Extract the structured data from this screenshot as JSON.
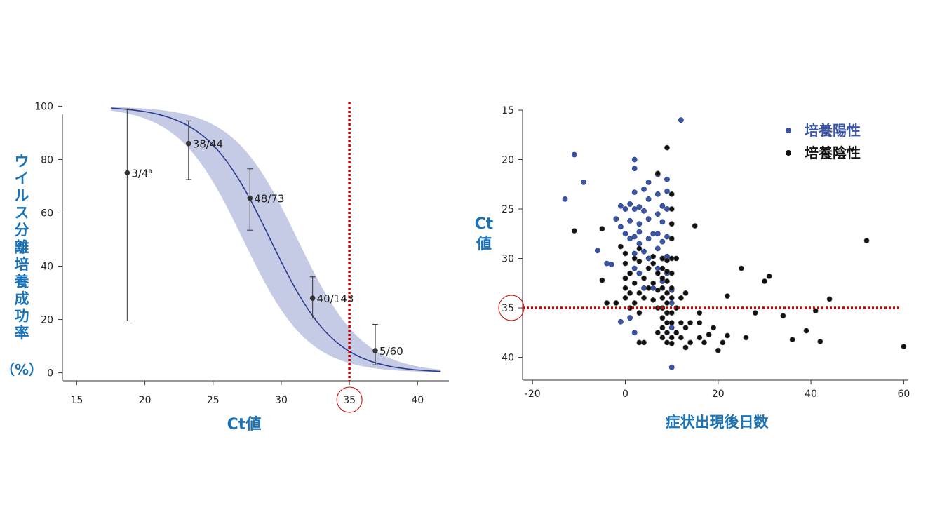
{
  "colors": {
    "axis_label": "#1a73b8",
    "curve": "#2b3d8f",
    "band": "#c5cae5",
    "threshold": "#d40000",
    "positive": "#3b55a5",
    "negative": "#111111"
  },
  "chart_data": [
    {
      "type": "line",
      "xlabel": "Ct値",
      "ylabel": "ウイルス分離培養成功率",
      "ylabel_unit": "（%）",
      "xlim": [
        14,
        42.3
      ],
      "ylim": [
        -3,
        103
      ],
      "xticks": [
        15,
        20,
        25,
        30,
        35,
        40
      ],
      "yticks": [
        0,
        20,
        40,
        60,
        80,
        100
      ],
      "threshold_x": 35,
      "threshold_label": "35",
      "logistic_curve": {
        "x_range": [
          17.5,
          41.8
        ],
        "midpoint": 29.2,
        "slope": 0.42,
        "band_halfwidth": 6
      },
      "points": [
        {
          "x": 18.7,
          "y": 75,
          "err_low": 19.5,
          "err_high": 99,
          "label": "3/4",
          "label_sup": "a"
        },
        {
          "x": 23.2,
          "y": 86,
          "err_low": 72.5,
          "err_high": 94.5,
          "label": "38/44",
          "label_sup": ""
        },
        {
          "x": 27.7,
          "y": 65.5,
          "err_low": 53.5,
          "err_high": 76.5,
          "label": "48/73",
          "label_sup": ""
        },
        {
          "x": 32.3,
          "y": 28,
          "err_low": 20.5,
          "err_high": 36,
          "label": "40/143",
          "label_sup": ""
        },
        {
          "x": 36.9,
          "y": 8.3,
          "err_low": 3,
          "err_high": 18.2,
          "label": "5/60",
          "label_sup": ""
        }
      ]
    },
    {
      "type": "scatter",
      "xlabel": "症状出現後日数",
      "ylabel": "Ct値",
      "xlim": [
        -22,
        61
      ],
      "ylim": [
        15,
        42.3
      ],
      "y_inverted": true,
      "xticks": [
        -20,
        0,
        20,
        40,
        60
      ],
      "yticks": [
        15,
        20,
        25,
        30,
        35,
        40
      ],
      "threshold_y": 35,
      "threshold_label": "35",
      "legend_position": "top-right",
      "series": [
        {
          "name": "培養陽性",
          "points": [
            [
              -11,
              19.5
            ],
            [
              -13,
              24
            ],
            [
              -9,
              22.3
            ],
            [
              -6,
              29.2
            ],
            [
              -4,
              30.5
            ],
            [
              -3,
              30.6
            ],
            [
              -2,
              26
            ],
            [
              -1,
              24.7
            ],
            [
              -1,
              26.8
            ],
            [
              0,
              27.5
            ],
            [
              0,
              25
            ],
            [
              0,
              32
            ],
            [
              1,
              28
            ],
            [
              1,
              24.5
            ],
            [
              1,
              26.2
            ],
            [
              2,
              20
            ],
            [
              2,
              20.9
            ],
            [
              2,
              23.3
            ],
            [
              2,
              25
            ],
            [
              2,
              27.8
            ],
            [
              2,
              29.5
            ],
            [
              2,
              31
            ],
            [
              3,
              24.8
            ],
            [
              3,
              27.3
            ],
            [
              3,
              28.5
            ],
            [
              3,
              31.5
            ],
            [
              3,
              26.5
            ],
            [
              4,
              25.2
            ],
            [
              4,
              29.3
            ],
            [
              4,
              33
            ],
            [
              4,
              23
            ],
            [
              5,
              22.3
            ],
            [
              5,
              24
            ],
            [
              5,
              26
            ],
            [
              5,
              28
            ],
            [
              5,
              30
            ],
            [
              6,
              33
            ],
            [
              6,
              27.5
            ],
            [
              7,
              21.5
            ],
            [
              7,
              23.5
            ],
            [
              7,
              25.5
            ],
            [
              7,
              27.5
            ],
            [
              7,
              29
            ],
            [
              7,
              31
            ],
            [
              8,
              24.7
            ],
            [
              8,
              26.3
            ],
            [
              8,
              28.3
            ],
            [
              8,
              30
            ],
            [
              8,
              32.3
            ],
            [
              9,
              29.8
            ],
            [
              9,
              22
            ],
            [
              9,
              23.2
            ],
            [
              9,
              25
            ],
            [
              9,
              27.8
            ],
            [
              9,
              31.5
            ],
            [
              9,
              35.5
            ],
            [
              10,
              33.2
            ],
            [
              10,
              34.5
            ],
            [
              10,
              37
            ],
            [
              10,
              41
            ],
            [
              12,
              16
            ],
            [
              1,
              36
            ],
            [
              -1,
              36.4
            ],
            [
              2,
              37.5
            ]
          ]
        },
        {
          "name": "培養陰性",
          "points": [
            [
              -11,
              27.2
            ],
            [
              -5,
              27
            ],
            [
              -5,
              32.2
            ],
            [
              -4,
              34.5
            ],
            [
              -2,
              34.5
            ],
            [
              -1,
              28.8
            ],
            [
              0,
              29.5
            ],
            [
              0,
              30.5
            ],
            [
              0,
              32
            ],
            [
              0,
              33
            ],
            [
              0,
              34
            ],
            [
              1,
              31.5
            ],
            [
              1,
              33.5
            ],
            [
              1,
              35
            ],
            [
              2,
              30
            ],
            [
              2,
              32.5
            ],
            [
              2,
              34.5
            ],
            [
              3,
              29
            ],
            [
              3,
              30.3
            ],
            [
              3,
              33.5
            ],
            [
              3,
              35.5
            ],
            [
              3,
              38.5
            ],
            [
              4,
              32
            ],
            [
              4,
              34
            ],
            [
              4,
              38.5
            ],
            [
              5,
              31
            ],
            [
              5,
              33
            ],
            [
              6,
              29.8
            ],
            [
              6,
              30.5
            ],
            [
              6,
              32.5
            ],
            [
              6,
              34.2
            ],
            [
              7,
              21.4
            ],
            [
              7,
              31.5
            ],
            [
              7,
              33.2
            ],
            [
              7,
              35
            ],
            [
              7,
              37.5
            ],
            [
              8,
              30
            ],
            [
              8,
              31
            ],
            [
              8,
              32
            ],
            [
              8,
              33
            ],
            [
              8,
              34
            ],
            [
              8,
              35
            ],
            [
              8,
              36
            ],
            [
              8,
              37
            ],
            [
              8,
              38
            ],
            [
              9,
              18.8
            ],
            [
              9,
              30.2
            ],
            [
              9,
              31.3
            ],
            [
              9,
              32.3
            ],
            [
              9,
              33.5
            ],
            [
              9,
              34.5
            ],
            [
              9,
              35.5
            ],
            [
              9,
              36.5
            ],
            [
              9,
              37.5
            ],
            [
              9,
              38.5
            ],
            [
              10,
              23.5
            ],
            [
              10,
              25
            ],
            [
              10,
              26.5
            ],
            [
              10,
              28
            ],
            [
              10,
              30
            ],
            [
              10,
              31.5
            ],
            [
              10,
              33
            ],
            [
              10,
              34
            ],
            [
              10,
              35.5
            ],
            [
              10,
              36.5
            ],
            [
              10,
              38
            ],
            [
              10,
              38.6
            ],
            [
              11,
              30
            ],
            [
              11,
              35
            ],
            [
              11,
              37.5
            ],
            [
              12,
              34
            ],
            [
              12,
              36.5
            ],
            [
              12,
              38
            ],
            [
              13,
              33.5
            ],
            [
              13,
              37
            ],
            [
              13,
              39
            ],
            [
              14,
              36.5
            ],
            [
              14,
              38.5
            ],
            [
              15,
              26.7
            ],
            [
              16,
              35.5
            ],
            [
              16,
              36.5
            ],
            [
              16,
              38
            ],
            [
              17,
              38.5
            ],
            [
              18,
              37.7
            ],
            [
              19,
              37
            ],
            [
              20,
              39.3
            ],
            [
              21,
              38.5
            ],
            [
              22,
              33.8
            ],
            [
              22,
              37.8
            ],
            [
              25,
              31
            ],
            [
              26,
              38
            ],
            [
              28,
              35.5
            ],
            [
              30,
              32.3
            ],
            [
              31,
              31.8
            ],
            [
              34,
              35.8
            ],
            [
              36,
              38.2
            ],
            [
              39,
              37.3
            ],
            [
              41,
              35.3
            ],
            [
              42,
              38.4
            ],
            [
              44,
              34.1
            ],
            [
              52,
              28.2
            ],
            [
              60,
              38.9
            ]
          ]
        }
      ]
    }
  ]
}
